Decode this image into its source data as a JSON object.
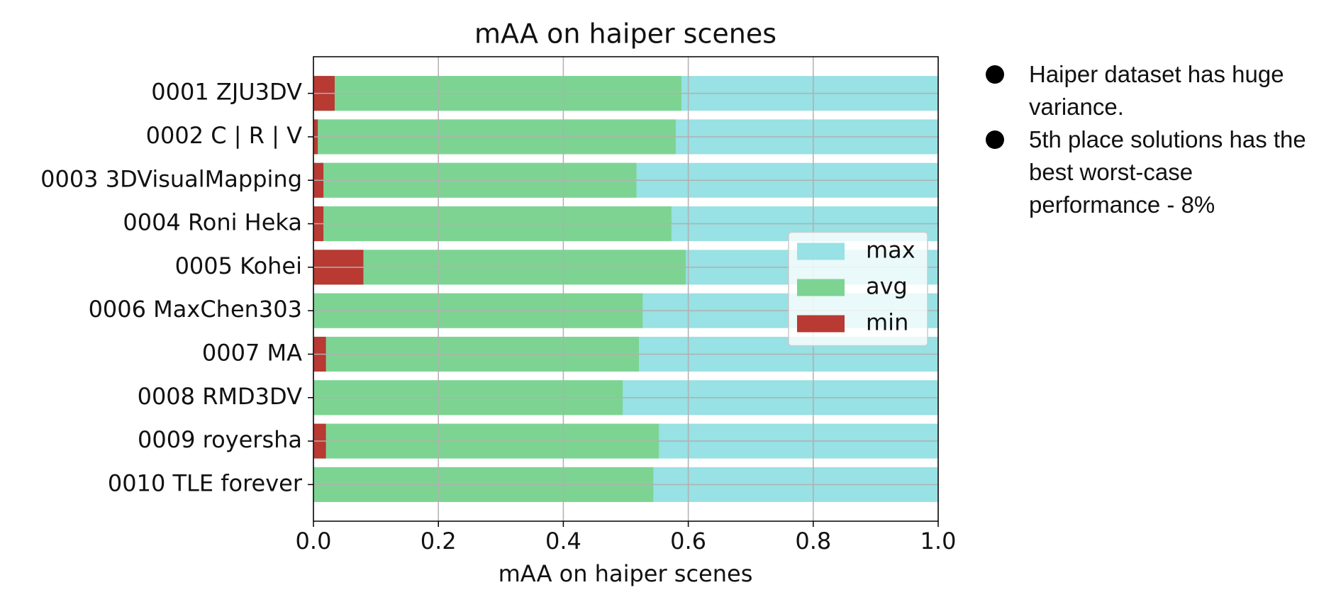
{
  "chart_data": {
    "type": "bar",
    "orientation": "horizontal",
    "title": "mAA on haiper scenes",
    "x_label": "mAA on haiper scenes",
    "categories": [
      "0001 ZJU3DV",
      "0002 C | R | V",
      "0003 3DVisualMapping",
      "0004 Roni Heka",
      "0005 Kohei",
      "0006 MaxChen303",
      "0007 MA",
      "0008 RMD3DV",
      "0009 royersha",
      "0010 TLE forever"
    ],
    "series": [
      {
        "name": "max",
        "color": "#98e1e4",
        "values": [
          1,
          1,
          1,
          1,
          1,
          1,
          1,
          1,
          1,
          1
        ]
      },
      {
        "name": "avg",
        "color": "#7dd492",
        "values": [
          0.589,
          0.58,
          0.517,
          0.573,
          0.596,
          0.527,
          0.521,
          0.495,
          0.553,
          0.544
        ]
      },
      {
        "name": "min",
        "color": "#b83a33",
        "values": [
          0.034,
          0.007,
          0.016,
          0.016,
          0.08,
          0,
          0.02,
          0,
          0.02,
          0
        ]
      }
    ],
    "xlim": [
      0,
      1
    ],
    "xticks": [
      {
        "value": 0,
        "label": "0.0"
      },
      0.2,
      0.4,
      0.6,
      0.8,
      {
        "value": 1,
        "label": "1.0"
      }
    ],
    "grid": true,
    "legend": "center right"
  },
  "notes": [
    "Haiper dataset has huge variance.",
    "5th place solutions has the best worst-case performance - 8%"
  ]
}
